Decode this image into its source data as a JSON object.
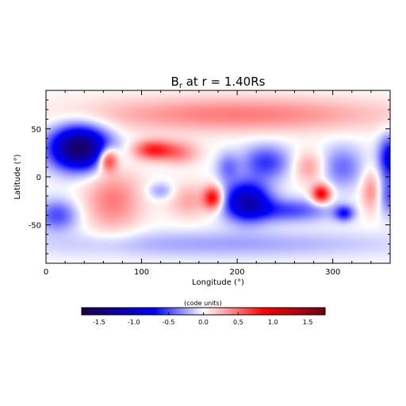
{
  "chart_data": {
    "type": "heatmap",
    "title": "B",
    "title_subscript": "r",
    "title_suffix": " at r = 1.40Rs",
    "xlabel": "Longitude (°)",
    "ylabel": "Latitude (°)",
    "xlim": [
      0,
      360
    ],
    "ylim": [
      -90,
      90
    ],
    "xticks": [
      0,
      100,
      200,
      300
    ],
    "yticks": [
      -50,
      0,
      50
    ],
    "colorbar": {
      "label": "(code units)",
      "range": [
        -1.75,
        1.75
      ],
      "ticks": [
        "-1.5",
        "-1.0",
        "-0.5",
        "0.0",
        "0.5",
        "1.0",
        "1.5"
      ],
      "tick_values": [
        -1.5,
        -1.0,
        -0.5,
        0.0,
        0.5,
        1.0,
        1.5
      ],
      "colormap": [
        "#1a0046",
        "#0000ff",
        "#ffffff",
        "#ff0000",
        "#6e0014"
      ]
    },
    "features": [
      {
        "lon": 35,
        "lat": 30,
        "value": -1.6,
        "rlon": 30,
        "rlat": 22
      },
      {
        "lon": 12,
        "lat": -40,
        "value": -0.5,
        "rlon": 22,
        "rlat": 16
      },
      {
        "lon": 65,
        "lat": 18,
        "value": 0.9,
        "rlon": 10,
        "rlat": 12
      },
      {
        "lon": 70,
        "lat": -25,
        "value": 0.45,
        "rlon": 30,
        "rlat": 32
      },
      {
        "lon": 112,
        "lat": 28,
        "value": 0.75,
        "rlon": 20,
        "rlat": 10
      },
      {
        "lon": 140,
        "lat": 25,
        "value": 0.4,
        "rlon": 20,
        "rlat": 12
      },
      {
        "lon": 120,
        "lat": -15,
        "value": -0.3,
        "rlon": 14,
        "rlat": 9
      },
      {
        "lon": 150,
        "lat": -25,
        "value": 0.3,
        "rlon": 22,
        "rlat": 18
      },
      {
        "lon": 175,
        "lat": -22,
        "value": 0.9,
        "rlon": 10,
        "rlat": 12
      },
      {
        "lon": 210,
        "lat": -25,
        "value": -1.1,
        "rlon": 24,
        "rlat": 20
      },
      {
        "lon": 230,
        "lat": 15,
        "value": -0.55,
        "rlon": 25,
        "rlat": 18
      },
      {
        "lon": 190,
        "lat": 10,
        "value": -0.35,
        "rlon": 12,
        "rlat": 15
      },
      {
        "lon": 255,
        "lat": -35,
        "value": -0.5,
        "rlon": 45,
        "rlat": 12
      },
      {
        "lon": 275,
        "lat": 10,
        "value": 0.35,
        "rlon": 16,
        "rlat": 16
      },
      {
        "lon": 288,
        "lat": -18,
        "value": 0.95,
        "rlon": 10,
        "rlat": 10
      },
      {
        "lon": 310,
        "lat": 10,
        "value": -0.4,
        "rlon": 22,
        "rlat": 22
      },
      {
        "lon": 312,
        "lat": -38,
        "value": -0.6,
        "rlon": 10,
        "rlat": 8
      },
      {
        "lon": 340,
        "lat": -15,
        "value": 0.4,
        "rlon": 10,
        "rlat": 22
      },
      {
        "lon": 360,
        "lat": 20,
        "value": -0.8,
        "rlon": 12,
        "rlat": 22
      },
      {
        "lon": 360,
        "lat": -20,
        "value": -0.45,
        "rlon": 12,
        "rlat": 20
      },
      {
        "lon": 200,
        "lat": 65,
        "value": 0.45,
        "rlon": 160,
        "rlat": 18
      },
      {
        "lon": 180,
        "lat": -70,
        "value": -0.25,
        "rlon": 190,
        "rlat": 14
      }
    ]
  }
}
